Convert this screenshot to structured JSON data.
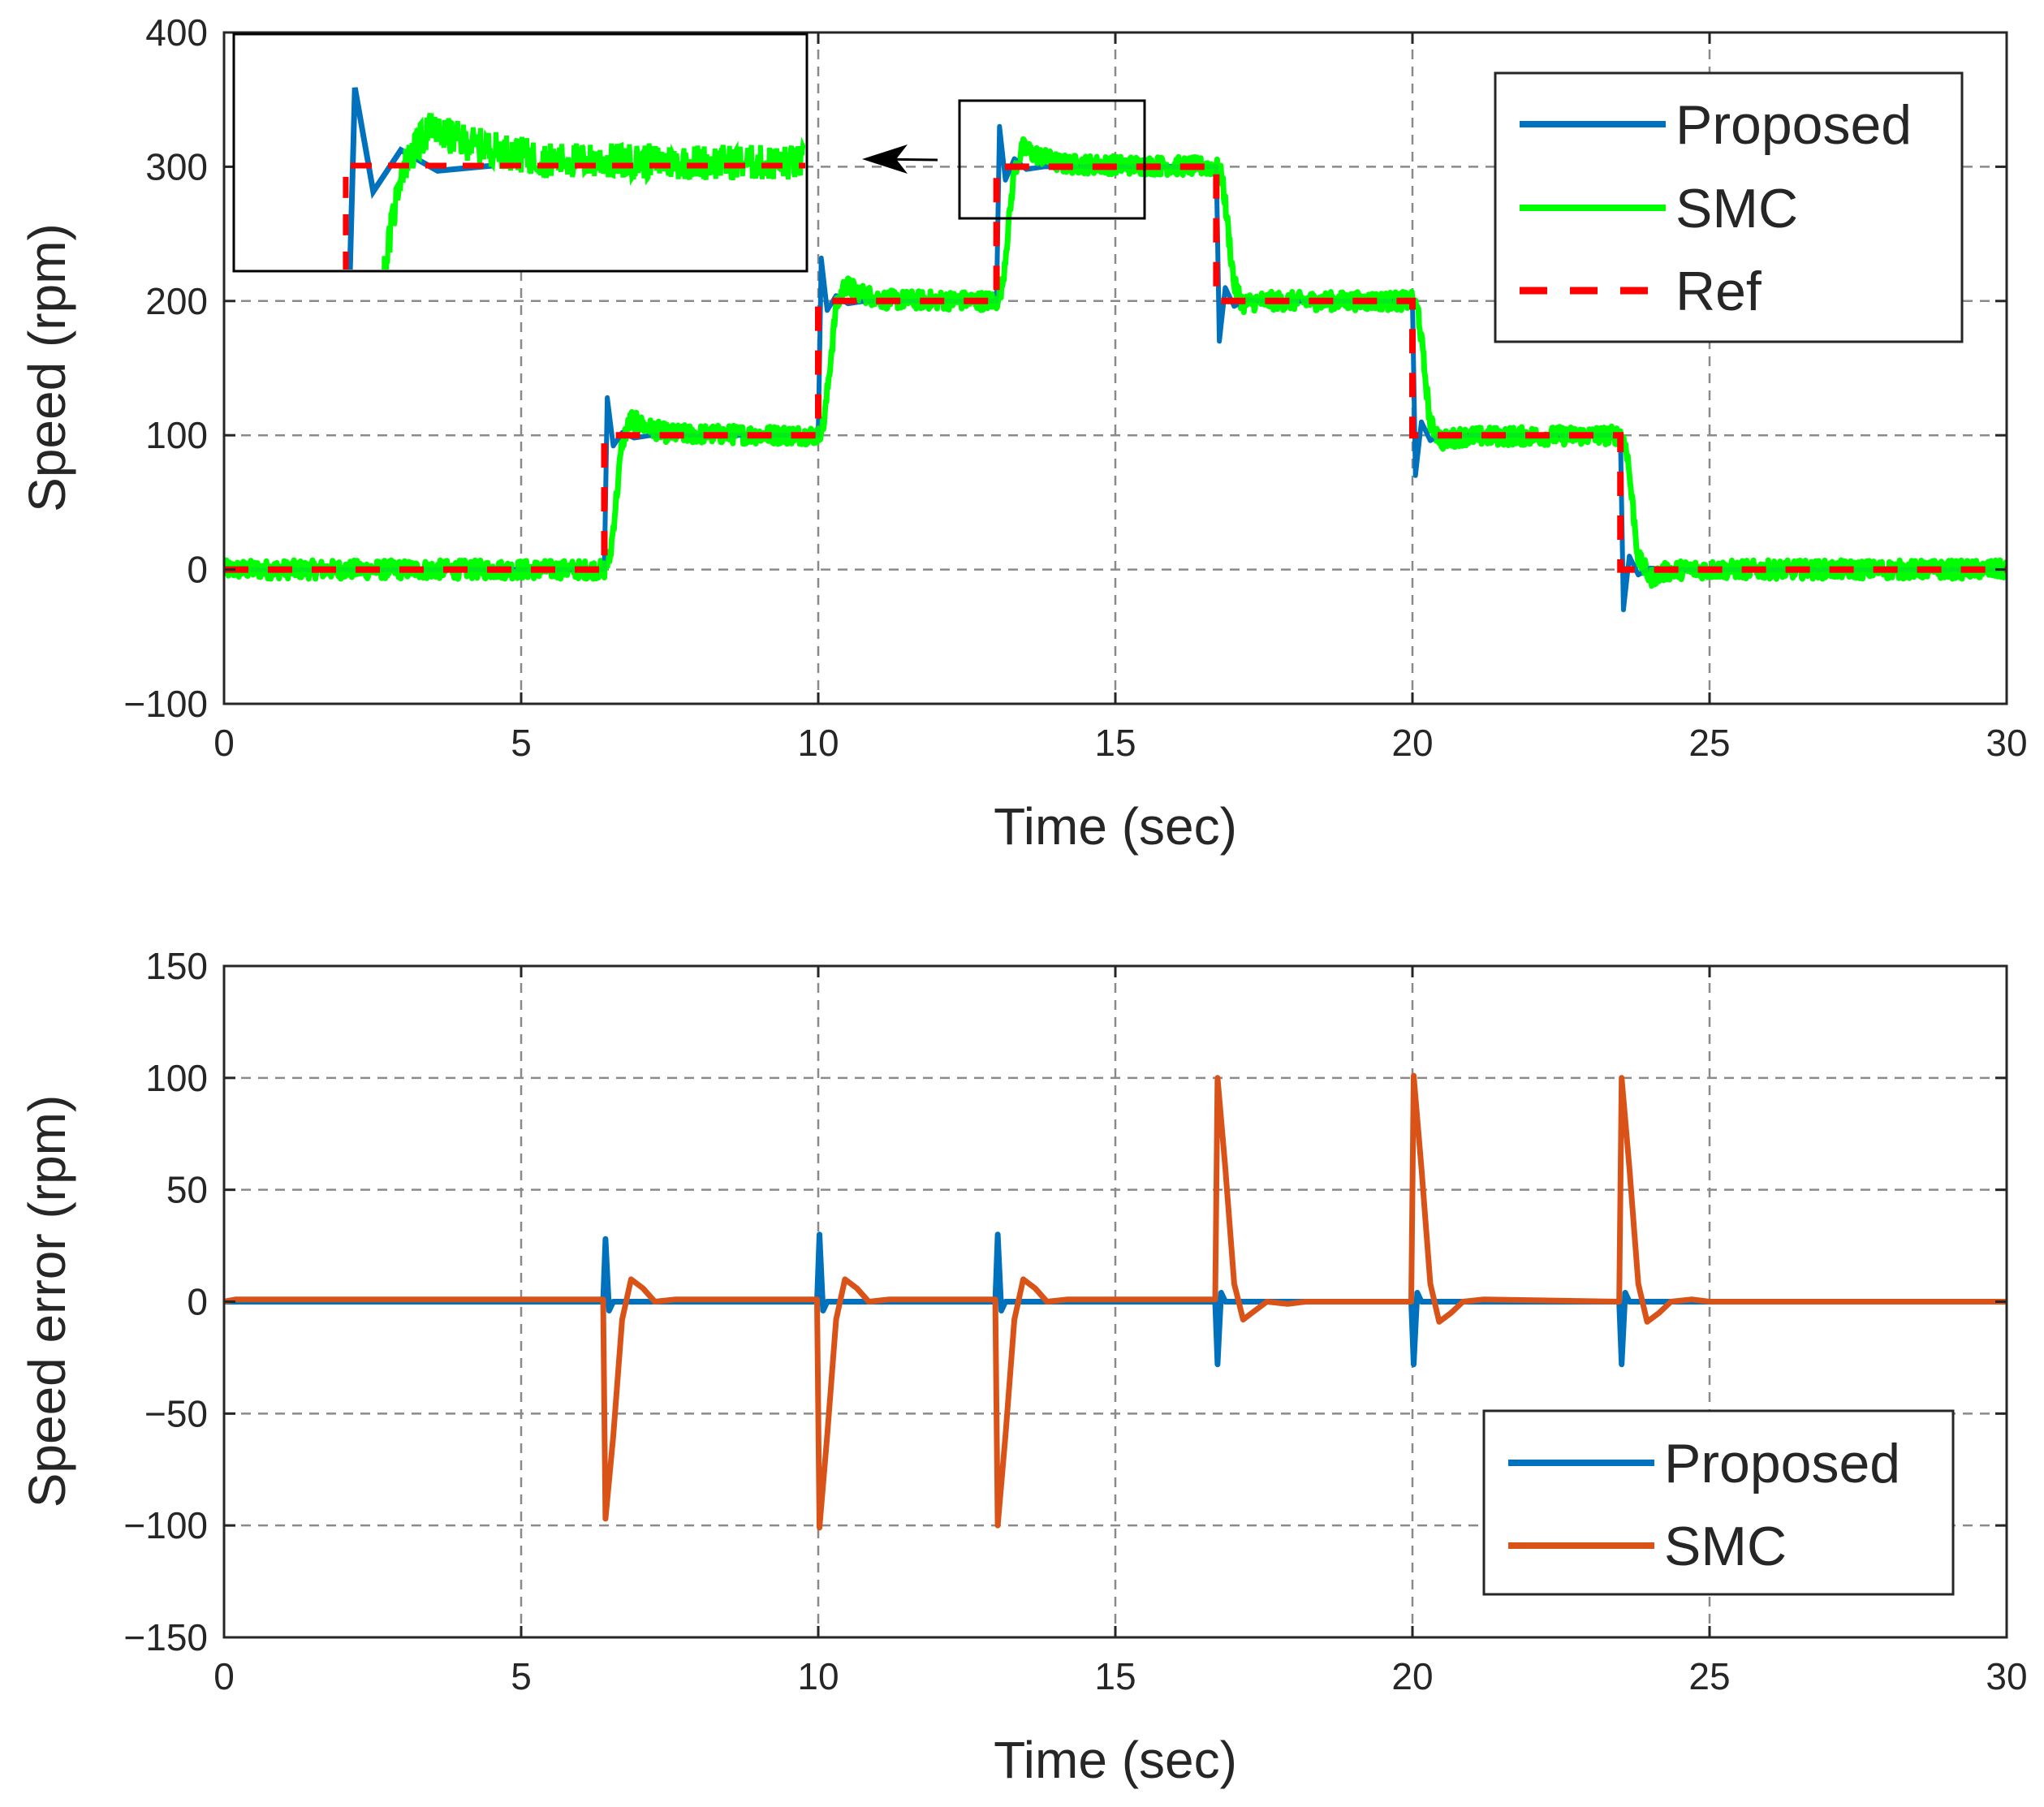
{
  "chart_data": [
    {
      "type": "line",
      "id": "speed",
      "xlabel": "Time (sec)",
      "ylabel": "Speed (rpm)",
      "xlim": [
        0,
        30
      ],
      "ylim": [
        -100,
        400
      ],
      "xticks": [
        0,
        5,
        10,
        15,
        20,
        25,
        30
      ],
      "yticks": [
        -100,
        0,
        100,
        200,
        300,
        400
      ],
      "xtick_labels": [
        "0",
        "5",
        "10",
        "15",
        "20",
        "25",
        "30"
      ],
      "ytick_labels": [
        "−100",
        "0",
        "100",
        "200",
        "300",
        "400"
      ],
      "grid": true,
      "legend_position": "top-right",
      "reference": {
        "name": "Ref",
        "step_times": [
          6.4,
          10.0,
          13.0,
          16.7,
          20.0,
          23.5
        ],
        "levels": [
          0,
          100,
          200,
          300,
          200,
          100,
          0
        ]
      },
      "series": [
        {
          "name": "Proposed",
          "color": "#0072BD",
          "overshoot_peaks": [
            128,
            232,
            330,
            170,
            70,
            -30
          ],
          "points": [
            [
              0,
              0
            ],
            [
              6.4,
              0
            ],
            [
              6.45,
              128
            ],
            [
              6.55,
              92
            ],
            [
              6.7,
              102
            ],
            [
              6.9,
              98
            ],
            [
              7.2,
              100
            ],
            [
              10.0,
              100
            ],
            [
              10.05,
              232
            ],
            [
              10.15,
              193
            ],
            [
              10.3,
              204
            ],
            [
              10.5,
              198
            ],
            [
              10.8,
              200
            ],
            [
              13.0,
              200
            ],
            [
              13.05,
              330
            ],
            [
              13.15,
              290
            ],
            [
              13.3,
              306
            ],
            [
              13.5,
              298
            ],
            [
              13.8,
              300
            ],
            [
              16.7,
              300
            ],
            [
              16.75,
              170
            ],
            [
              16.85,
              210
            ],
            [
              17.0,
              196
            ],
            [
              17.2,
              201
            ],
            [
              17.5,
              200
            ],
            [
              20.0,
              200
            ],
            [
              20.05,
              70
            ],
            [
              20.15,
              110
            ],
            [
              20.3,
              96
            ],
            [
              20.5,
              101
            ],
            [
              20.8,
              100
            ],
            [
              23.5,
              100
            ],
            [
              23.55,
              -30
            ],
            [
              23.65,
              10
            ],
            [
              23.8,
              -4
            ],
            [
              24.0,
              1
            ],
            [
              24.3,
              0
            ],
            [
              30,
              0
            ]
          ]
        },
        {
          "name": "SMC",
          "color": "#00FF00",
          "noise_amplitude_rpm": 7,
          "points": [
            [
              0,
              0
            ],
            [
              6.4,
              0
            ],
            [
              6.5,
              10
            ],
            [
              6.7,
              95
            ],
            [
              6.85,
              112
            ],
            [
              7.1,
              106
            ],
            [
              7.5,
              101
            ],
            [
              10.0,
              100
            ],
            [
              10.1,
              110
            ],
            [
              10.3,
              196
            ],
            [
              10.45,
              212
            ],
            [
              10.7,
              206
            ],
            [
              11.1,
              201
            ],
            [
              13.0,
              200
            ],
            [
              13.1,
              212
            ],
            [
              13.3,
              298
            ],
            [
              13.45,
              314
            ],
            [
              13.7,
              308
            ],
            [
              14.1,
              302
            ],
            [
              16.7,
              300
            ],
            [
              16.8,
              292
            ],
            [
              17.0,
              212
            ],
            [
              17.15,
              198
            ],
            [
              17.4,
              200
            ],
            [
              20.0,
              200
            ],
            [
              20.1,
              192
            ],
            [
              20.3,
              108
            ],
            [
              20.5,
              96
            ],
            [
              20.8,
              99
            ],
            [
              23.5,
              100
            ],
            [
              23.6,
              92
            ],
            [
              23.8,
              8
            ],
            [
              24.0,
              -6
            ],
            [
              24.3,
              -1
            ],
            [
              24.6,
              0
            ],
            [
              30,
              0
            ]
          ]
        }
      ],
      "inset": {
        "zoom_xlim": [
          12.4,
          15.5
        ],
        "zoom_ylim": [
          260,
          350
        ]
      }
    },
    {
      "type": "line",
      "id": "speed-error",
      "xlabel": "Time (sec)",
      "ylabel": "Speed error (rpm)",
      "xlim": [
        0,
        30
      ],
      "ylim": [
        -150,
        150
      ],
      "xticks": [
        0,
        5,
        10,
        15,
        20,
        25,
        30
      ],
      "yticks": [
        -150,
        -100,
        -50,
        0,
        50,
        100,
        150
      ],
      "xtick_labels": [
        "0",
        "5",
        "10",
        "15",
        "20",
        "25",
        "30"
      ],
      "ytick_labels": [
        "−150",
        "−100",
        "−50",
        "0",
        "50",
        "100",
        "150"
      ],
      "grid": true,
      "legend_position": "bottom-right",
      "series": [
        {
          "name": "Proposed",
          "color": "#0072BD",
          "points": [
            [
              0,
              0
            ],
            [
              6.38,
              0
            ],
            [
              6.42,
              28
            ],
            [
              6.48,
              -4
            ],
            [
              6.55,
              0
            ],
            [
              9.98,
              0
            ],
            [
              10.02,
              30
            ],
            [
              10.08,
              -4
            ],
            [
              10.15,
              0
            ],
            [
              12.98,
              0
            ],
            [
              13.02,
              30
            ],
            [
              13.08,
              -4
            ],
            [
              13.15,
              0
            ],
            [
              16.68,
              0
            ],
            [
              16.72,
              -28
            ],
            [
              16.78,
              4
            ],
            [
              16.85,
              0
            ],
            [
              19.98,
              0
            ],
            [
              20.02,
              -28
            ],
            [
              20.08,
              4
            ],
            [
              20.15,
              0
            ],
            [
              23.48,
              0
            ],
            [
              23.52,
              -28
            ],
            [
              23.58,
              4
            ],
            [
              23.65,
              0
            ],
            [
              30,
              0
            ]
          ]
        },
        {
          "name": "SMC",
          "color": "#D95319",
          "points": [
            [
              0,
              0
            ],
            [
              0.2,
              1
            ],
            [
              6.38,
              1
            ],
            [
              6.42,
              -97
            ],
            [
              6.55,
              -60
            ],
            [
              6.7,
              -8
            ],
            [
              6.85,
              10
            ],
            [
              7.05,
              6
            ],
            [
              7.25,
              0
            ],
            [
              7.6,
              1
            ],
            [
              9.98,
              1
            ],
            [
              10.02,
              -101
            ],
            [
              10.15,
              -60
            ],
            [
              10.3,
              -8
            ],
            [
              10.45,
              10
            ],
            [
              10.65,
              6
            ],
            [
              10.85,
              0
            ],
            [
              11.2,
              1
            ],
            [
              12.98,
              1
            ],
            [
              13.02,
              -100
            ],
            [
              13.15,
              -60
            ],
            [
              13.3,
              -8
            ],
            [
              13.45,
              10
            ],
            [
              13.65,
              6
            ],
            [
              13.85,
              0
            ],
            [
              14.2,
              1
            ],
            [
              16.68,
              1
            ],
            [
              16.72,
              100
            ],
            [
              16.85,
              60
            ],
            [
              17.0,
              8
            ],
            [
              17.15,
              -8
            ],
            [
              17.35,
              -4
            ],
            [
              17.55,
              0
            ],
            [
              17.9,
              -1
            ],
            [
              18.2,
              0
            ],
            [
              19.98,
              0
            ],
            [
              20.02,
              101
            ],
            [
              20.15,
              60
            ],
            [
              20.3,
              8
            ],
            [
              20.45,
              -9
            ],
            [
              20.65,
              -5
            ],
            [
              20.85,
              0
            ],
            [
              21.2,
              1
            ],
            [
              23.48,
              0
            ],
            [
              23.52,
              100
            ],
            [
              23.65,
              60
            ],
            [
              23.8,
              8
            ],
            [
              23.95,
              -9
            ],
            [
              24.15,
              -5
            ],
            [
              24.35,
              0
            ],
            [
              24.7,
              1
            ],
            [
              25.0,
              0
            ],
            [
              30,
              0
            ]
          ]
        }
      ]
    }
  ],
  "legend_ref_color": "#FF0000"
}
